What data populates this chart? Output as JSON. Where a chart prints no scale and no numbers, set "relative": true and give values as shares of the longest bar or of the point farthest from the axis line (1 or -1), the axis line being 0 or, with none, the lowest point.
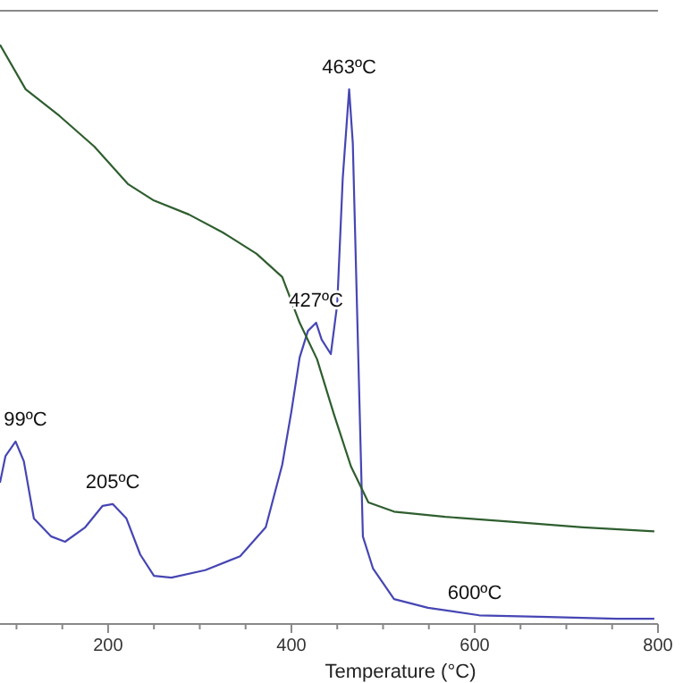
{
  "chart_data": {
    "type": "line",
    "relative": true,
    "xlabel": "Temperature (°C)",
    "xlim": [
      82,
      800
    ],
    "xticks": [
      {
        "value": 100,
        "label": null
      },
      {
        "value": 150,
        "label": null
      },
      200,
      {
        "value": 250,
        "label": null
      },
      {
        "value": 300,
        "label": null
      },
      {
        "value": 350,
        "label": null
      },
      400,
      {
        "value": 450,
        "label": null
      },
      {
        "value": 500,
        "label": null
      },
      {
        "value": 550,
        "label": null
      },
      600,
      {
        "value": 650,
        "label": null
      },
      {
        "value": 700,
        "label": null
      },
      {
        "value": 750,
        "label": null
      },
      800
    ],
    "grid": false,
    "marker": "none",
    "line_style": "solid",
    "series": [
      {
        "color": "#4646b4",
        "x": [
          82,
          88,
          99,
          108,
          119,
          138,
          153,
          175,
          194,
          205,
          220,
          235,
          250,
          269,
          306,
          344,
          372,
          390,
          400,
          409,
          418,
          427,
          433,
          443,
          450,
          456,
          463,
          467,
          473,
          478,
          489,
          512,
          549,
          605,
          680,
          755,
          796
        ],
        "values": [
          0.244,
          0.29,
          0.315,
          0.281,
          0.182,
          0.151,
          0.142,
          0.167,
          0.204,
          0.207,
          0.182,
          0.12,
          0.083,
          0.08,
          0.093,
          0.117,
          0.167,
          0.275,
          0.367,
          0.46,
          0.506,
          0.52,
          0.491,
          0.466,
          0.552,
          0.769,
          0.923,
          0.83,
          0.46,
          0.151,
          0.096,
          0.043,
          0.028,
          0.015,
          0.012,
          0.009,
          0.009
        ]
      },
      {
        "color": "#2f5e2f",
        "x": [
          82,
          110,
          147,
          185,
          222,
          250,
          288,
          325,
          362,
          390,
          409,
          428,
          446,
          465,
          484,
          512,
          568,
          643,
          718,
          796
        ],
        "values": [
          1.0,
          0.923,
          0.877,
          0.824,
          0.759,
          0.731,
          0.707,
          0.676,
          0.639,
          0.599,
          0.52,
          0.457,
          0.364,
          0.272,
          0.21,
          0.194,
          0.185,
          0.176,
          0.167,
          0.16
        ]
      }
    ],
    "annotations": [
      {
        "text": "99ºC",
        "x": 99,
        "y": 0.315
      },
      {
        "text": "205ºC",
        "x": 205,
        "y": 0.207
      },
      {
        "text": "427ºC",
        "x": 427,
        "y": 0.52
      },
      {
        "text": "463ºC",
        "x": 463,
        "y": 0.923
      },
      {
        "text": "600ºC",
        "x": 600,
        "y": 0.015
      }
    ]
  }
}
